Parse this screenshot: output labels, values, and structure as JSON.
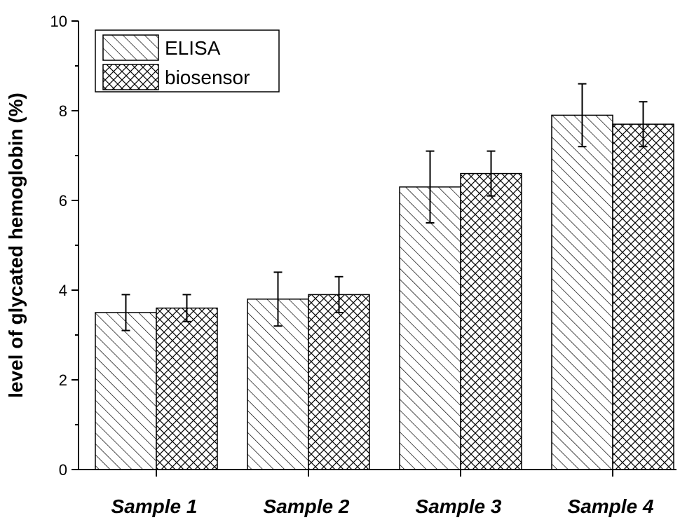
{
  "chart_data": {
    "type": "bar",
    "categories": [
      "Sample 1",
      "Sample 2",
      "Sample 3",
      "Sample 4"
    ],
    "series": [
      {
        "name": "ELISA",
        "pattern": "diagonal-hatch",
        "values": [
          3.5,
          3.8,
          6.3,
          7.9
        ],
        "errors": [
          0.4,
          0.6,
          0.8,
          0.7
        ]
      },
      {
        "name": "biosensor",
        "pattern": "cross-hatch",
        "values": [
          3.6,
          3.9,
          6.6,
          7.7
        ],
        "errors": [
          0.3,
          0.4,
          0.5,
          0.5
        ]
      }
    ],
    "title": "",
    "xlabel": "",
    "ylabel": "level of glycated hemoglobin (%)",
    "ylim": [
      0,
      10
    ],
    "yticks": [
      "0",
      "2",
      "4",
      "6",
      "8",
      "10"
    ],
    "grid": false,
    "legend_position": "top-left",
    "colors": {
      "bar_stroke": "#000000",
      "bar_fill": "#ffffff"
    }
  }
}
